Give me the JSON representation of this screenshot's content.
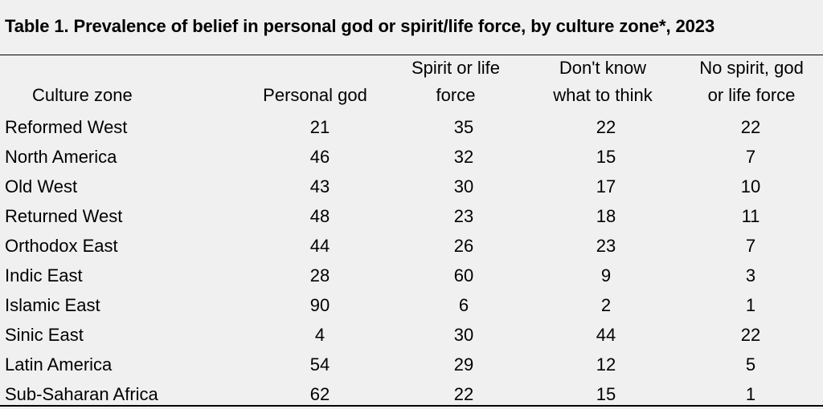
{
  "title": "Table 1. Prevalence of belief in personal god or spirit/life force, by culture zone*, 2023",
  "headers": [
    [
      "Culture zone"
    ],
    [
      "Personal god"
    ],
    [
      "Spirit or life",
      "force"
    ],
    [
      "Don't know",
      "what to think"
    ],
    [
      "No spirit, god",
      "or life force"
    ]
  ],
  "rows": [
    [
      "Reformed West",
      "21",
      "35",
      "22",
      "22"
    ],
    [
      "North America",
      "46",
      "32",
      "15",
      "7"
    ],
    [
      "Old West",
      "43",
      "30",
      "17",
      "10"
    ],
    [
      "Returned West",
      "48",
      "23",
      "18",
      "11"
    ],
    [
      "Orthodox East",
      "44",
      "26",
      "23",
      "7"
    ],
    [
      "Indic East",
      "28",
      "60",
      "9",
      "3"
    ],
    [
      "Islamic East",
      "90",
      "6",
      "2",
      "1"
    ],
    [
      "Sinic East",
      "4",
      "30",
      "44",
      "22"
    ],
    [
      "Latin America",
      "54",
      "29",
      "12",
      "5"
    ],
    [
      "Sub-Saharan Africa",
      "62",
      "22",
      "15",
      "1"
    ]
  ]
}
